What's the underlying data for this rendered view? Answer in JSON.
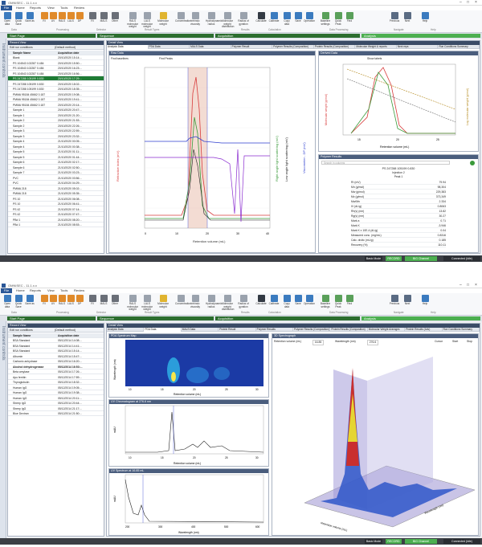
{
  "app_title": "OMNISEC - 11.1.x.x",
  "menu": [
    "Home",
    "Reports",
    "View",
    "Tools",
    "Review"
  ],
  "file_label": "File",
  "ribbon1": [
    {
      "l": "Open data",
      "c": "#3b7bbf"
    },
    {
      "l": "Quick Save",
      "c": "#3b7bbf"
    },
    {
      "l": "Save as",
      "c": "#3b7bbf"
    },
    {
      "l": "RI",
      "c": "#e08a2a"
    },
    {
      "l": "UV",
      "c": "#e08a2a"
    },
    {
      "l": "RALS",
      "c": "#e08a2a"
    },
    {
      "l": "LALS",
      "c": "#e08a2a"
    },
    {
      "l": "DP",
      "c": "#e08a2a"
    },
    {
      "l": "RI",
      "c": "#6a6f78"
    },
    {
      "l": "MALS",
      "c": "#6a6f78"
    },
    {
      "l": "Other",
      "c": "#6a6f78"
    },
    {
      "l": "RALS molecular weight",
      "c": "#9aa2ad"
    },
    {
      "l": "LALS molecular weight",
      "c": "#9aa2ad"
    },
    {
      "l": "Molecular weight",
      "c": "#e0b430"
    },
    {
      "l": "Concentration",
      "c": "#9aa2ad"
    },
    {
      "l": "Intrinsic viscosity",
      "c": "#9aa2ad"
    },
    {
      "l": "Hydrodynamic radius",
      "c": "#9aa2ad"
    },
    {
      "l": "Molecular weight distribution",
      "c": "#9aa2ad"
    },
    {
      "l": "Radius of gyration",
      "c": "#9aa2ad"
    },
    {
      "l": "Calculate",
      "c": "#333a44"
    },
    {
      "l": "Calibrate",
      "c": "#3b7bbf"
    },
    {
      "l": "Copy data",
      "c": "#3b7bbf"
    },
    {
      "l": "Save",
      "c": "#3b7bbf"
    },
    {
      "l": "Operation",
      "c": "#3b7bbf"
    },
    {
      "l": "Baseline settings",
      "c": "#5aa05a"
    },
    {
      "l": "Quick Peak",
      "c": "#5aa05a"
    },
    {
      "l": "Find",
      "c": "#5aa05a"
    },
    {
      "l": "Previous",
      "c": "#5a6b83"
    },
    {
      "l": "Next",
      "c": "#5a6b83"
    },
    {
      "l": "Help",
      "c": "#3b7bbf"
    }
  ],
  "ribbon_groups": [
    "Data",
    "Processing",
    "Detector",
    "Result Types",
    "Results",
    "Calculation",
    "Data Processing",
    "Navigate",
    "Help"
  ],
  "steps": {
    "start": "Start Page",
    "sequence": "Sequence",
    "acquisition": "Acquisition",
    "analysis": "Analysis"
  },
  "side_label": "Instrument controls",
  "record_view": "Record View",
  "record_tool": {
    "edit": "Edit run conditions",
    "method": "(Default method)"
  },
  "record_headers": [
    "Sample Name",
    "Acquisition date"
  ],
  "records1": [
    [
      "Blank",
      "20/10/2020 15:14:..."
    ],
    [
      "PS 104543 102287 0.484",
      "20/10/2020 15:50:..."
    ],
    [
      "PS 104543 102287 0.484",
      "20/10/2020 16:23:..."
    ],
    [
      "PS 104543 102287 0.484",
      "20/10/2020 16:56:..."
    ],
    [
      "PS 247288 105199 0.830",
      "20/10/2020 17:29:..."
    ],
    [
      "PS 247288 105199 0.830",
      "20/10/2020 18:02:..."
    ],
    [
      "PS 247288 105199 0.830",
      "20/10/2020 18:35:..."
    ],
    [
      "PMMA 95184 45662 0.187",
      "20/10/2020 19:08:..."
    ],
    [
      "PMMA 95184 45662 0.187",
      "20/10/2020 19:41:..."
    ],
    [
      "PMMA 95184 45662 0.187",
      "20/10/2020 20:14:..."
    ],
    [
      "Sample 1",
      "20/10/2020 20:47:..."
    ],
    [
      "Sample 1",
      "20/10/2020 21:20:..."
    ],
    [
      "Sample 2",
      "20/10/2020 21:53:..."
    ],
    [
      "Sample 2",
      "20/10/2020 22:26:..."
    ],
    [
      "Sample 3",
      "20/10/2020 22:59:..."
    ],
    [
      "Sample 3",
      "20/10/2020 23:32:..."
    ],
    [
      "Sample 4",
      "21/10/2020 00:05:..."
    ],
    [
      "Sample 4",
      "21/10/2020 00:38:..."
    ],
    [
      "Sample 5",
      "21/10/2020 01:11:..."
    ],
    [
      "Sample 5",
      "21/10/2020 01:44:..."
    ],
    [
      "Sample 6",
      "21/10/2020 02:17:..."
    ],
    [
      "Sample 6",
      "21/10/2020 02:50:..."
    ],
    [
      "Sample 7",
      "21/10/2020 03:23:..."
    ],
    [
      "PVC",
      "21/10/2020 03:56:..."
    ],
    [
      "PVC",
      "21/10/2020 04:29:..."
    ],
    [
      "PMMA 218",
      "21/10/2020 05:02:..."
    ],
    [
      "PMMA 218",
      "21/10/2020 05:35:..."
    ],
    [
      "PS 10",
      "21/10/2020 06:08:..."
    ],
    [
      "PS 10",
      "21/10/2020 06:41:..."
    ],
    [
      "PS 42",
      "21/10/2020 07:14:..."
    ],
    [
      "PS 42",
      "21/10/2020 07:47:..."
    ],
    [
      "PBd 1",
      "21/10/2020 08:20:..."
    ],
    [
      "PBd 1",
      "21/10/2020 08:53:..."
    ]
  ],
  "records2": [
    [
      "BSA Standard",
      "05/12/2014 14:08:..."
    ],
    [
      "BSA Standard",
      "05/12/2014 14:41:..."
    ],
    [
      "BSA Standard",
      "05/12/2014 15:14:..."
    ],
    [
      "Albumin",
      "05/12/2014 15:47:..."
    ],
    [
      "Carbonic anhydrase",
      "05/12/2014 16:20:..."
    ],
    [
      "Alcohol dehydrogenase",
      "05/12/2014 16:53:..."
    ],
    [
      "Beta amylase",
      "05/12/2014 17:26:..."
    ],
    [
      "Apo ferritin",
      "05/12/2014 17:59:..."
    ],
    [
      "Thyroglobulin",
      "05/12/2014 18:32:..."
    ],
    [
      "Human IgG",
      "05/12/2014 19:05:..."
    ],
    [
      "Human IgG",
      "05/12/2014 19:38:..."
    ],
    [
      "Human IgG",
      "05/12/2014 20:11:..."
    ],
    [
      "Sheep IgG",
      "05/12/2014 20:44:..."
    ],
    [
      "Sheep IgG",
      "05/12/2014 21:17:..."
    ],
    [
      "Blue Dextran",
      "05/12/2014 21:50:..."
    ]
  ],
  "detail_view": "Detail View",
  "tabs1": [
    "Analysis Data",
    "PDA Data",
    "MALS Data",
    "Polymer Result",
    "Polymer Results (Composition)",
    "Protein Results (Composition)",
    "Molecular Weight & reports",
    "Next reps",
    "Run Conditions Summary"
  ],
  "tabs2": [
    "Analysis Data",
    "PDA Data",
    "MALS Data",
    "Protein Result",
    "Polymer Results",
    "Polymer Results (Composition)",
    "Protein Results (Composition)",
    "Molecular Weight Averages",
    "Protein Results (Adv)",
    "Run Conditions Summary"
  ],
  "raw_data": "Raw Data",
  "find_baselines": "Find baselines",
  "find_peaks": "Find Peaks",
  "derived_data": "Derived Data",
  "show_labels": "Show labels",
  "polymer_results": "Polymer Results",
  "res_search": "Search in columns",
  "res_title": "PS 247288 105199 0.830",
  "res_injection": "Injection 2",
  "res_peak": "Peak 1",
  "results": [
    [
      "RI (mV)",
      "79.94"
    ],
    [
      "Mn (g/mol)",
      "98,304"
    ],
    [
      "Mw (g/mol)",
      "229,383"
    ],
    [
      "Mz (g/mol)",
      "373,349"
    ],
    [
      "Mw/Mn",
      "2.334"
    ],
    [
      "IV (dL/g)",
      "0.8063"
    ],
    [
      "Rh(v) (nm)",
      "13.82"
    ],
    [
      "Rg(v) (nm)",
      "30.27"
    ],
    [
      "Mark a",
      "0.71"
    ],
    [
      "Mark K",
      "-3.946"
    ],
    [
      "Mark K x 10E-4 (dL/g)",
      "0.04"
    ],
    [
      "Measured conc. (mg/mL)",
      "0.8316"
    ],
    [
      "Calc. dn/dc (mL/g)",
      "0.185"
    ],
    [
      "Recovery (%)",
      "110.11"
    ]
  ],
  "chart1_ylabel_left": "Refractive index (mV)",
  "chart1_ylabel_r1": "Right angle light scattering (mV)",
  "chart1_ylabel_r2": "Low angle light scattering (mV)",
  "chart1_ylabel_r3": "Viscometer - DP (mV)",
  "chart1_xlabel": "Retention volume (mL)",
  "chart1_xticks": [
    "0",
    "10",
    "20",
    "30",
    "40"
  ],
  "chart2_ylabel_left": "Molecular weight (g/mol)",
  "chart2_ylabel_r": "Log molecular weight (g/mol)",
  "chart2_xlabel": "Retention volume (mL)",
  "chart2_xticks": [
    "15",
    "20",
    "25"
  ],
  "pda_map": "PDA Spectrum Map",
  "pda_ylabel": "Wavelength (nm)",
  "pda_xlabel": "Retention volume (mL)",
  "pda_xticks": [
    "10",
    "15",
    "20",
    "25",
    "30"
  ],
  "conc_title": "UV Chromatogram at 276.6 nm",
  "conc_ylabel": "mAU",
  "conc_xlabel": "Retention volume (mL)",
  "conc_xticks": [
    "10",
    "15",
    "20",
    "25",
    "30"
  ],
  "spec_title": "UV Spectrum at 16.85 mL",
  "spec_ylabel": "mAU",
  "spec_xlabel": "Wavelength (nm)",
  "spec_xticks": [
    "200",
    "300",
    "400",
    "500",
    "600"
  ],
  "spectrograph_title": "3D Spectrograph",
  "rv_label": "Retention volume (mL)",
  "rv_value": "16.85",
  "wl_label": "Wavelength (nm)",
  "wl_value": "276.6",
  "cursor_label": "Cursor",
  "start_label": "Start",
  "stop_label": "Stop",
  "axis3d_rv": "Retention volume (mL)",
  "axis3d_wl": "Wavelength (nm)",
  "status": {
    "mode": "Basic Mode",
    "rec": "RECORD",
    "green": "BIG Channel",
    "conn": "Connected (Idle)"
  },
  "colors": {
    "accent": "#1e7b34",
    "header": "#3a4b66",
    "ri": "#d83c3c",
    "rals": "#3a9a3a",
    "lals": "#222222",
    "dp": "#2f3fcf",
    "uv": "#8a2bd0"
  }
}
